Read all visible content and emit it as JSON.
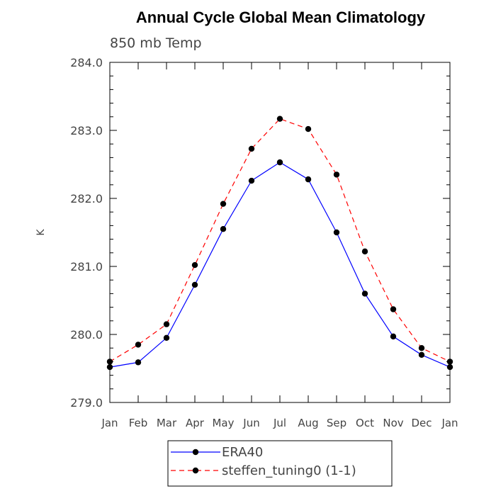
{
  "chart_data": {
    "type": "line",
    "title": "Annual Cycle Global Mean Climatology",
    "subtitle": "850 mb Temp",
    "xlabel": "",
    "ylabel": "K",
    "categories": [
      "Jan",
      "Feb",
      "Mar",
      "Apr",
      "May",
      "Jun",
      "Jul",
      "Aug",
      "Sep",
      "Oct",
      "Nov",
      "Dec",
      "Jan"
    ],
    "ylim": [
      279.0,
      284.0
    ],
    "yticks": [
      "279.0",
      "280.0",
      "281.0",
      "282.0",
      "283.0",
      "284.0"
    ],
    "series": [
      {
        "name": "ERA40",
        "color": "#0000ff",
        "dash": "solid",
        "values": [
          279.52,
          279.59,
          279.95,
          280.73,
          281.55,
          282.26,
          282.53,
          282.28,
          281.5,
          280.6,
          279.97,
          279.7,
          279.52
        ]
      },
      {
        "name": "steffen_tuning0 (1-1)",
        "color": "#ff0000",
        "dash": "dashed",
        "values": [
          279.6,
          279.85,
          280.15,
          281.02,
          281.92,
          282.73,
          283.17,
          283.02,
          282.35,
          281.22,
          280.37,
          279.8,
          279.6
        ]
      }
    ],
    "grid": false,
    "legend_position": "bottom-center"
  }
}
